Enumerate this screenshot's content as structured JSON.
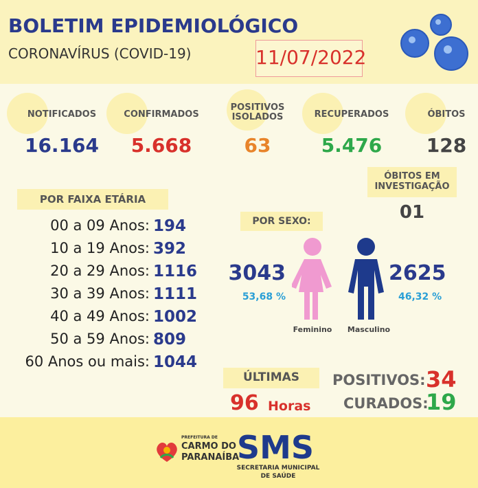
{
  "header": {
    "title": "BOLETIM EPIDEMIOLÓGICO",
    "subtitle": "CORONAVÍRUS (COVID-19)",
    "date": "11/07/2022"
  },
  "stats": [
    {
      "label": "NOTIFICADOS",
      "value": "16.164"
    },
    {
      "label": "CONFIRMADOS",
      "value": "5.668"
    },
    {
      "label": "POSITIVOS ISOLADOS",
      "value": "63"
    },
    {
      "label": "RECUPERADOS",
      "value": "5.476"
    },
    {
      "label": "ÓBITOS",
      "value": "128"
    }
  ],
  "investigacao": {
    "label": "ÓBITOS EM INVESTIGAÇÃO",
    "value": "01"
  },
  "faixa": {
    "title": "POR FAIXA ETÁRIA",
    "rows": [
      {
        "label": "00 a 09 Anos:",
        "value": "194"
      },
      {
        "label": "10 a 19 Anos:",
        "value": "392"
      },
      {
        "label": "20 a 29 Anos:",
        "value": "1116"
      },
      {
        "label": "30 a 39 Anos:",
        "value": "1111"
      },
      {
        "label": "40 a 49 Anos:",
        "value": "1002"
      },
      {
        "label": "50 a 59 Anos:",
        "value": "809"
      },
      {
        "label": "60 Anos ou mais:",
        "value": "1044"
      }
    ]
  },
  "sexo": {
    "title": "POR SEXO:",
    "female": {
      "count": "3043",
      "percent": "53,68 %",
      "label": "Feminino"
    },
    "male": {
      "count": "2625",
      "percent": "46,32 %",
      "label": "Masculino"
    }
  },
  "ultimas": {
    "title": "ÚLTIMAS",
    "hours": "96",
    "unit": "Horas",
    "positivos_label": "POSITIVOS:",
    "positivos": "34",
    "curados_label": "CURADOS:",
    "curados": "19"
  },
  "footer": {
    "prefeitura": "PREFEITURA DE",
    "city1": "CARMO DO",
    "city2": "PARANAÍBA",
    "sms": "SMS",
    "sec1": "SECRETARIA MUNICIPAL",
    "sec2": "DE SAÚDE"
  }
}
